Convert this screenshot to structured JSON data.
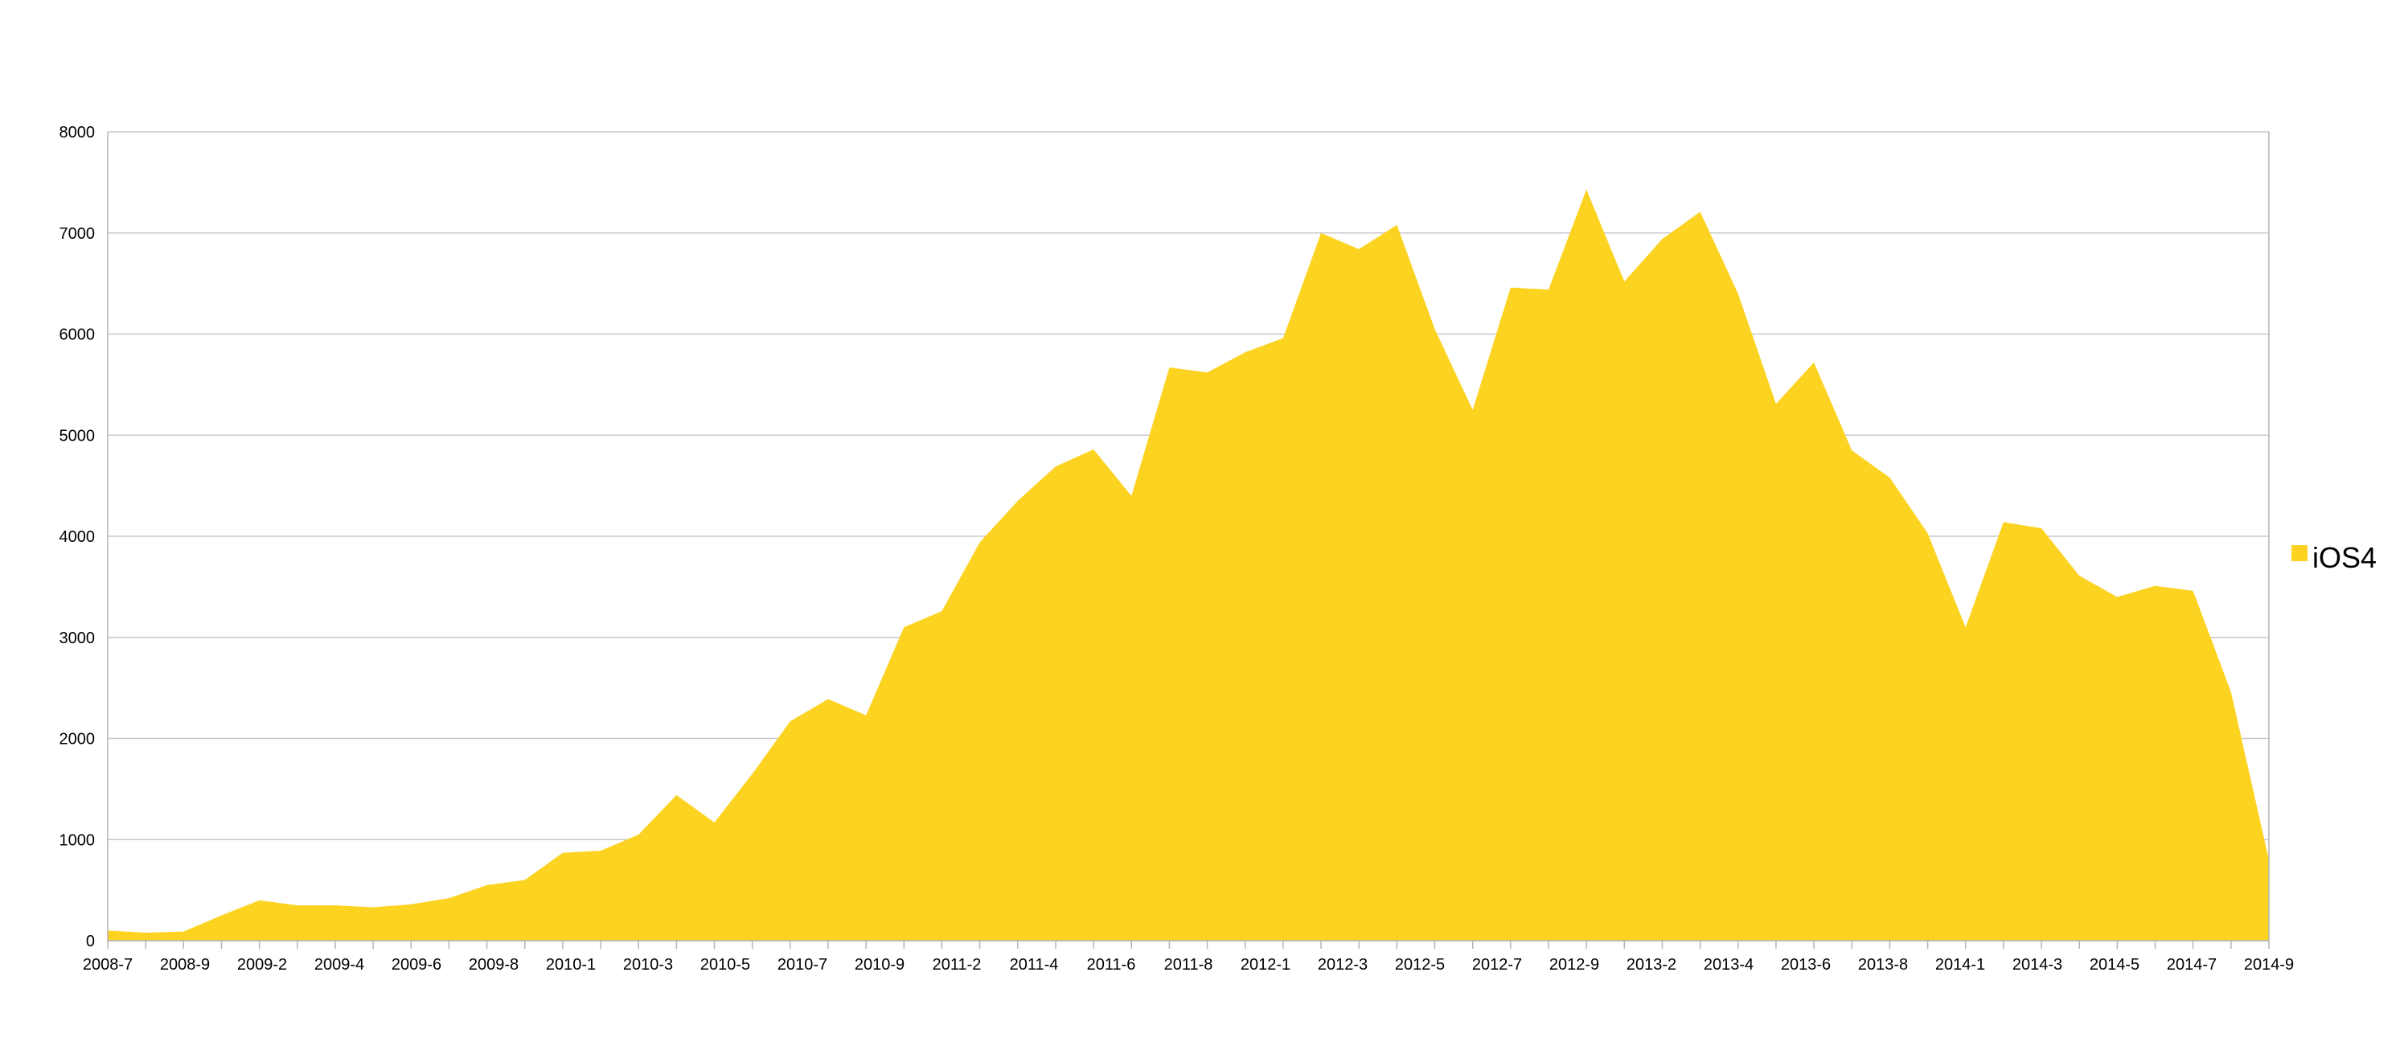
{
  "chart_data": {
    "type": "area",
    "title": "",
    "xlabel": "",
    "ylabel": "",
    "ylim": [
      0,
      8000
    ],
    "y_ticks": [
      0,
      1000,
      2000,
      3000,
      4000,
      5000,
      6000,
      7000,
      8000
    ],
    "grid": true,
    "legend_position": "right",
    "x_tick_labels": [
      "2008-7",
      "2008-9",
      "2009-2",
      "2009-4",
      "2009-6",
      "2009-8",
      "2010-1",
      "2010-3",
      "2010-5",
      "2010-7",
      "2010-9",
      "2011-2",
      "2011-4",
      "2011-6",
      "2011-8",
      "2012-1",
      "2012-3",
      "2012-5",
      "2012-7",
      "2012-9",
      "2013-2",
      "2013-4",
      "2013-6",
      "2013-8",
      "2014-1",
      "2014-3",
      "2014-5",
      "2014-7",
      "2014-9"
    ],
    "colors": {
      "series": "#fdd322",
      "grid": "#c8c8c8",
      "axis": "#b4b4b4"
    },
    "series": [
      {
        "name": "iOS4",
        "values": [
          100,
          80,
          90,
          250,
          400,
          350,
          350,
          330,
          360,
          420,
          550,
          600,
          870,
          890,
          1050,
          1440,
          1170,
          1650,
          2170,
          2390,
          2230,
          3100,
          3260,
          3940,
          4350,
          4690,
          4860,
          4400,
          5670,
          5620,
          5820,
          5960,
          7000,
          6840,
          7080,
          6050,
          5250,
          6460,
          6440,
          7430,
          6520,
          6940,
          7210,
          6400,
          5310,
          5720,
          4850,
          4580,
          4030,
          3100,
          4140,
          4080,
          3610,
          3400,
          3510,
          3460,
          2460,
          800
        ]
      }
    ]
  }
}
